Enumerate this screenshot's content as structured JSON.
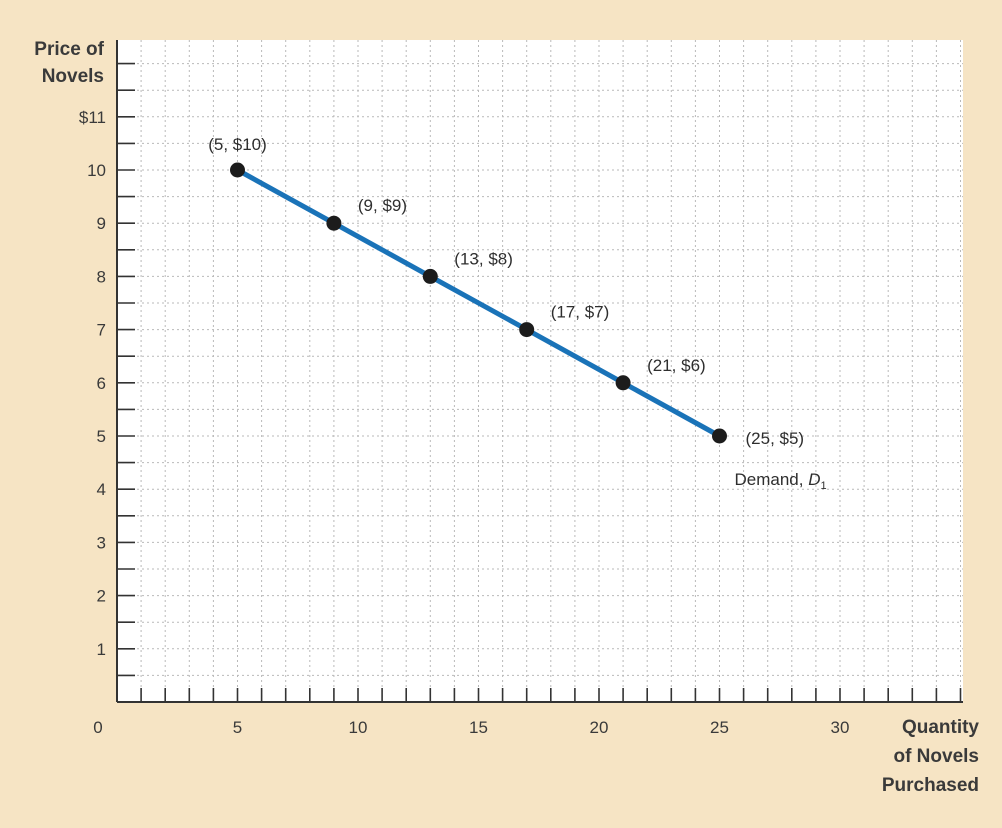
{
  "chart_data": {
    "type": "line",
    "xlabel": [
      "Quantity",
      "of Novels",
      "Purchased"
    ],
    "ylabel": [
      "Price of",
      "Novels"
    ],
    "xlim": [
      0,
      35
    ],
    "ylim": [
      0,
      12
    ],
    "x_ticks": [
      {
        "value": 0,
        "label": "0"
      },
      {
        "value": 5,
        "label": "5"
      },
      {
        "value": 10,
        "label": "10"
      },
      {
        "value": 15,
        "label": "15"
      },
      {
        "value": 20,
        "label": "20"
      },
      {
        "value": 25,
        "label": "25"
      },
      {
        "value": 30,
        "label": "30"
      }
    ],
    "y_ticks": [
      {
        "value": 1,
        "label": "1"
      },
      {
        "value": 2,
        "label": "2"
      },
      {
        "value": 3,
        "label": "3"
      },
      {
        "value": 4,
        "label": "4"
      },
      {
        "value": 5,
        "label": "5"
      },
      {
        "value": 6,
        "label": "6"
      },
      {
        "value": 7,
        "label": "7"
      },
      {
        "value": 8,
        "label": "8"
      },
      {
        "value": 9,
        "label": "9"
      },
      {
        "value": 10,
        "label": "10"
      },
      {
        "value": 11,
        "label": "$11"
      }
    ],
    "grid": true,
    "series": [
      {
        "name": "Demand, D",
        "name_subscript": "1",
        "color": "#1a73b8",
        "points": [
          {
            "x": 5,
            "y": 10,
            "label": "(5, $10)"
          },
          {
            "x": 9,
            "y": 9,
            "label": "(9, $9)"
          },
          {
            "x": 13,
            "y": 8,
            "label": "(13, $8)"
          },
          {
            "x": 17,
            "y": 7,
            "label": "(17, $7)"
          },
          {
            "x": 21,
            "y": 6,
            "label": "(21, $6)"
          },
          {
            "x": 25,
            "y": 5,
            "label": "(25, $5)"
          }
        ]
      }
    ]
  },
  "colors": {
    "background": "#f6e4c4",
    "plot_background": "#ffffff",
    "grid": "#b9b9b9",
    "axis": "#333333",
    "point": "#1c1c1c",
    "line": "#1a73b8"
  }
}
